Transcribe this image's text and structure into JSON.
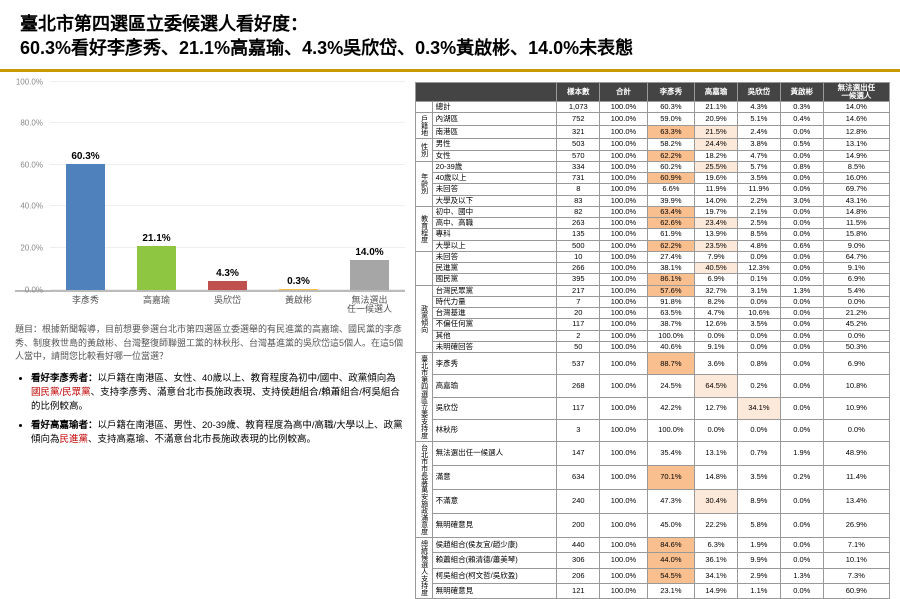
{
  "title_line1": "臺北市第四選區立委候選人看好度：",
  "title_line2": "60.3%看好李彥秀、21.1%高嘉瑜、4.3%吳欣岱、0.3%黃啟彬、14.0%未表態",
  "accent_color": "#c79a00",
  "chart": {
    "type": "bar",
    "ylim": [
      0,
      100
    ],
    "ytick_step": 20,
    "y_format": "%.1f%%",
    "grid_color": "#eeeeee",
    "axis_color": "#bbbbbb",
    "label_fontsize": 9,
    "value_fontsize": 10,
    "categories": [
      "李彥秀",
      "高嘉瑜",
      "吳欣岱",
      "黃啟彬",
      "無法選出\n任一候選人"
    ],
    "values": [
      60.3,
      21.1,
      4.3,
      0.3,
      14.0
    ],
    "bar_colors": [
      "#4f81bd",
      "#8ec641",
      "#c0504d",
      "#f6c142",
      "#a6a6a6"
    ]
  },
  "question": "題目：根據新聞報導，目前想要參選台北市第四選區立委選舉的有民進黨的高嘉瑜、國民黨的李彥秀、制度救世島的黃啟彬、台灣整復師聯盟工黨的林秋彤、台灣基進黨的吳欣岱這5個人。在這5個人當中，請問您比較看好哪一位當選？",
  "bullets": [
    {
      "prefix": "看好李彥秀者：",
      "body": "以戶籍在南港區、女性、40歲以上、教育程度為初中/國中、政黨傾向為<span class='red'>國民黨/民眾黨</span>、支持李彥秀、滿意台北市長施政表現、支持侯趙組合/賴蕭組合/柯吳組合的比例較高。"
    },
    {
      "prefix": "看好高嘉瑜者：",
      "body": "以戶籍在南港區、男性、20-39歲、教育程度為高中/高職/大學以上、政黨傾向為<span class='red'>民進黨</span>、支持高嘉瑜、不滿意台北市長施政表現的比例較高。"
    }
  ],
  "table": {
    "heat_colors": {
      "low": "#ffffff",
      "mid": "#fde9d9",
      "high": "#fabf8f"
    },
    "columns": [
      "樣本數",
      "合計",
      "李彥秀",
      "高嘉瑜",
      "吳欣岱",
      "黃啟彬",
      "無法選出任\n一候選人"
    ],
    "groups": [
      {
        "name": "",
        "rows": [
          {
            "label": "總計",
            "cells": [
              "1,073",
              "100.0%",
              "60.3%",
              "21.1%",
              "4.3%",
              "0.3%",
              "14.0%"
            ]
          }
        ]
      },
      {
        "name": "戶籍地",
        "rows": [
          {
            "label": "內湖區",
            "cells": [
              "752",
              "100.0%",
              "59.0%",
              "20.9%",
              "5.1%",
              "0.4%",
              "14.6%"
            ]
          },
          {
            "label": "南港區",
            "cells": [
              "321",
              "100.0%",
              "63.3%",
              "21.5%",
              "2.4%",
              "0.0%",
              "12.8%"
            ],
            "heat": [
              2,
              3
            ]
          }
        ]
      },
      {
        "name": "性別",
        "rows": [
          {
            "label": "男性",
            "cells": [
              "503",
              "100.0%",
              "58.2%",
              "24.4%",
              "3.8%",
              "0.5%",
              "13.1%"
            ],
            "heat": [
              3
            ]
          },
          {
            "label": "女性",
            "cells": [
              "570",
              "100.0%",
              "62.2%",
              "18.2%",
              "4.7%",
              "0.0%",
              "14.9%"
            ],
            "heat": [
              2
            ]
          }
        ]
      },
      {
        "name": "年齡別",
        "rows": [
          {
            "label": "20-39歲",
            "cells": [
              "334",
              "100.0%",
              "60.2%",
              "25.5%",
              "5.7%",
              "0.8%",
              "8.5%"
            ],
            "heat": [
              3
            ]
          },
          {
            "label": "40歲以上",
            "cells": [
              "731",
              "100.0%",
              "60.9%",
              "19.6%",
              "3.5%",
              "0.0%",
              "16.0%"
            ],
            "heat": [
              2
            ]
          },
          {
            "label": "未回答",
            "cells": [
              "8",
              "100.0%",
              "6.6%",
              "11.9%",
              "11.9%",
              "0.0%",
              "69.7%"
            ]
          },
          {
            "label": "大學及以下",
            "cells": [
              "83",
              "100.0%",
              "39.9%",
              "14.0%",
              "2.2%",
              "3.0%",
              "43.1%"
            ]
          }
        ]
      },
      {
        "name": "教育程度",
        "rows": [
          {
            "label": "初中、國中",
            "cells": [
              "82",
              "100.0%",
              "63.4%",
              "19.7%",
              "2.1%",
              "0.0%",
              "14.8%"
            ],
            "heat": [
              2
            ]
          },
          {
            "label": "高中、高職",
            "cells": [
              "263",
              "100.0%",
              "62.6%",
              "23.4%",
              "2.5%",
              "0.0%",
              "11.5%"
            ],
            "heat": [
              2,
              3
            ]
          },
          {
            "label": "專科",
            "cells": [
              "135",
              "100.0%",
              "61.9%",
              "13.9%",
              "8.5%",
              "0.0%",
              "15.8%"
            ]
          },
          {
            "label": "大學以上",
            "cells": [
              "500",
              "100.0%",
              "62.2%",
              "23.5%",
              "4.8%",
              "0.6%",
              "9.0%"
            ],
            "heat": [
              2,
              3
            ]
          }
        ]
      },
      {
        "name": "",
        "rows": [
          {
            "label": "未回答",
            "cells": [
              "10",
              "100.0%",
              "27.4%",
              "7.9%",
              "0.0%",
              "0.0%",
              "64.7%"
            ]
          },
          {
            "label": "民進黨",
            "cells": [
              "266",
              "100.0%",
              "38.1%",
              "40.5%",
              "12.3%",
              "0.0%",
              "9.1%"
            ],
            "heat": [
              3
            ]
          },
          {
            "label": "國民黨",
            "cells": [
              "395",
              "100.0%",
              "86.1%",
              "6.9%",
              "0.1%",
              "0.0%",
              "6.9%"
            ],
            "heat": [
              2
            ]
          }
        ]
      },
      {
        "name": "政黨傾向",
        "rows": [
          {
            "label": "台灣民眾黨",
            "cells": [
              "217",
              "100.0%",
              "57.6%",
              "32.7%",
              "3.1%",
              "1.3%",
              "5.4%"
            ],
            "heat": [
              2
            ]
          },
          {
            "label": "時代力量",
            "cells": [
              "7",
              "100.0%",
              "91.8%",
              "8.2%",
              "0.0%",
              "0.0%",
              "0.0%"
            ]
          },
          {
            "label": "台灣基進",
            "cells": [
              "20",
              "100.0%",
              "63.5%",
              "4.7%",
              "10.6%",
              "0.0%",
              "21.2%"
            ]
          },
          {
            "label": "不偏任何黨",
            "cells": [
              "117",
              "100.0%",
              "38.7%",
              "12.6%",
              "3.5%",
              "0.0%",
              "45.2%"
            ]
          },
          {
            "label": "其他",
            "cells": [
              "2",
              "100.0%",
              "100.0%",
              "0.0%",
              "0.0%",
              "0.0%",
              "0.0%"
            ]
          },
          {
            "label": "未明確回答",
            "cells": [
              "50",
              "100.0%",
              "40.6%",
              "9.1%",
              "0.0%",
              "0.0%",
              "50.3%"
            ]
          }
        ]
      },
      {
        "name": "臺北市第\n四選區立\n委支持度",
        "rows": [
          {
            "label": "李彥秀",
            "cells": [
              "537",
              "100.0%",
              "88.7%",
              "3.6%",
              "0.8%",
              "0.0%",
              "6.9%"
            ],
            "heat": [
              2
            ]
          },
          {
            "label": "高嘉瑜",
            "cells": [
              "268",
              "100.0%",
              "24.5%",
              "64.5%",
              "0.2%",
              "0.0%",
              "10.8%"
            ],
            "heat": [
              3
            ]
          },
          {
            "label": "吳欣岱",
            "cells": [
              "117",
              "100.0%",
              "42.2%",
              "12.7%",
              "34.1%",
              "0.0%",
              "10.9%"
            ],
            "heat": [
              4
            ]
          },
          {
            "label": "林秋彤",
            "cells": [
              "3",
              "100.0%",
              "100.0%",
              "0.0%",
              "0.0%",
              "0.0%",
              "0.0%"
            ]
          }
        ]
      },
      {
        "name": "台北市市\n長蔣萬安\n施政滿意\n度",
        "rows": [
          {
            "label": "無法選出任一候選人",
            "cells": [
              "147",
              "100.0%",
              "35.4%",
              "13.1%",
              "0.7%",
              "1.9%",
              "48.9%"
            ]
          },
          {
            "label": "滿意",
            "cells": [
              "634",
              "100.0%",
              "70.1%",
              "14.8%",
              "3.5%",
              "0.2%",
              "11.4%"
            ],
            "heat": [
              2
            ]
          },
          {
            "label": "不滿意",
            "cells": [
              "240",
              "100.0%",
              "47.3%",
              "30.4%",
              "8.9%",
              "0.0%",
              "13.4%"
            ],
            "heat": [
              3
            ]
          },
          {
            "label": "無明確意見",
            "cells": [
              "200",
              "100.0%",
              "45.0%",
              "22.2%",
              "5.8%",
              "0.0%",
              "26.9%"
            ]
          }
        ]
      },
      {
        "name": "總統候選\n人支持度",
        "rows": [
          {
            "label": "侯趙組合(侯友宜/趙少康)",
            "cells": [
              "440",
              "100.0%",
              "84.6%",
              "6.3%",
              "1.9%",
              "0.0%",
              "7.1%"
            ],
            "heat": [
              2
            ]
          },
          {
            "label": "賴蕭組合(賴清德/蕭美琴)",
            "cells": [
              "306",
              "100.0%",
              "44.0%",
              "36.1%",
              "9.9%",
              "0.0%",
              "10.1%"
            ],
            "heat": [
              2
            ]
          },
          {
            "label": "柯吳組合(柯文哲/吳欣盈)",
            "cells": [
              "206",
              "100.0%",
              "54.5%",
              "34.1%",
              "2.9%",
              "1.3%",
              "7.3%"
            ],
            "heat": [
              2
            ]
          },
          {
            "label": "無明確意見",
            "cells": [
              "121",
              "100.0%",
              "23.1%",
              "14.9%",
              "1.1%",
              "0.0%",
              "60.9%"
            ]
          }
        ]
      }
    ]
  }
}
